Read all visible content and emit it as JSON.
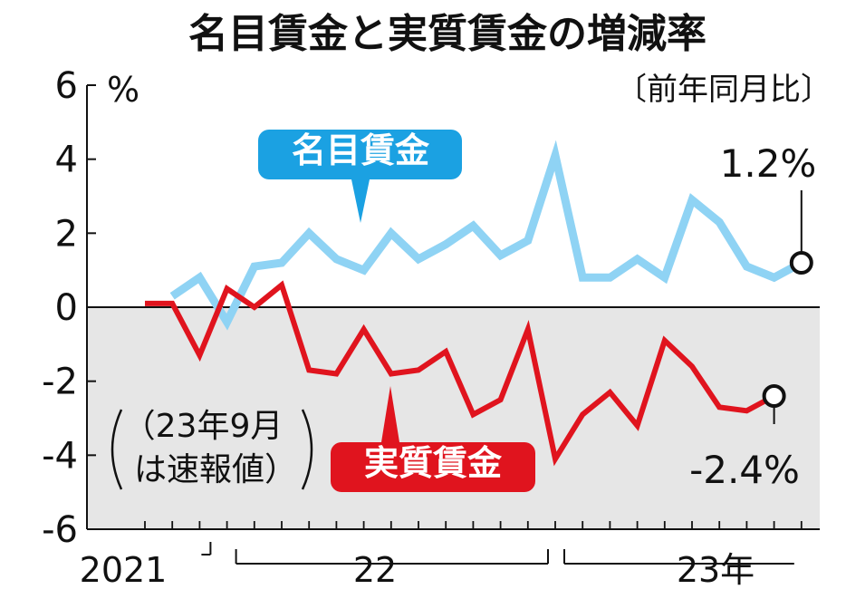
{
  "chart_data": {
    "type": "line",
    "title": "名目賃金と実質賃金の増減率",
    "subtitle": "〔前年同月比〕",
    "y_unit": "%",
    "ylim": [
      -6,
      6
    ],
    "y_ticks": [
      "6",
      "4",
      "2",
      "0",
      "-2",
      "-4",
      "-6"
    ],
    "x_period_labels": [
      "2021",
      "22",
      "23年"
    ],
    "x_months": [
      "2021-09",
      "2021-10",
      "2021-11",
      "2021-12",
      "2022-01",
      "2022-02",
      "2022-03",
      "2022-04",
      "2022-05",
      "2022-06",
      "2022-07",
      "2022-08",
      "2022-09",
      "2022-10",
      "2022-11",
      "2022-12",
      "2023-01",
      "2023-02",
      "2023-03",
      "2023-04",
      "2023-05",
      "2023-06",
      "2023-07",
      "2023-08",
      "2023-09"
    ],
    "series": [
      {
        "name": "名目賃金",
        "color": "#8fd3f4",
        "values": [
          0.3,
          0.8,
          -0.4,
          1.1,
          1.2,
          2.0,
          1.3,
          1.0,
          2.0,
          1.3,
          1.7,
          2.2,
          1.4,
          1.8,
          4.1,
          0.8,
          0.8,
          1.3,
          0.8,
          2.9,
          2.3,
          1.1,
          0.8,
          1.2
        ],
        "value_start_index": 1,
        "end_label": "1.2%"
      },
      {
        "name": "実質賃金",
        "color": "#e0141e",
        "values": [
          0.1,
          0.1,
          -1.3,
          0.5,
          0.0,
          0.6,
          -1.7,
          -1.8,
          -0.6,
          -1.8,
          -1.7,
          -1.2,
          -2.9,
          -2.5,
          -0.6,
          -4.1,
          -2.9,
          -2.3,
          -3.2,
          -0.9,
          -1.6,
          -2.7,
          -2.8,
          -2.4
        ],
        "value_start_index": 0,
        "end_label": "-2.4%"
      }
    ],
    "note": [
      "（23年9月",
      "は速報値）"
    ],
    "negative_region_color": "#e6e6e6"
  }
}
